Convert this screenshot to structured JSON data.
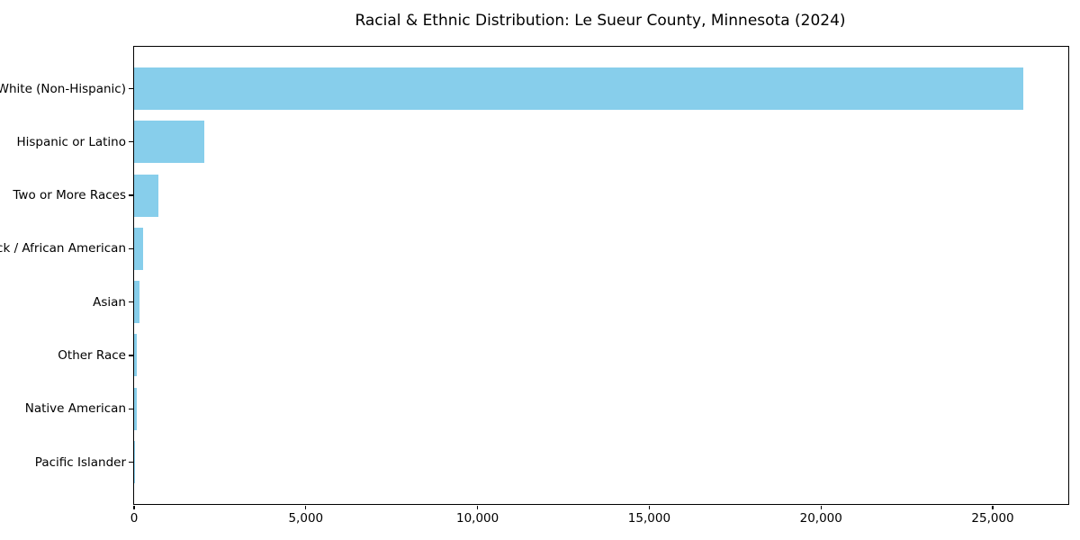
{
  "title": "Racial & Ethnic Distribution: Le Sueur County, Minnesota (2024)",
  "colors": {
    "bar": "#87CEEB",
    "axis": "#000000",
    "background": "#ffffff",
    "text": "#000000"
  },
  "chart_data": {
    "type": "bar",
    "orientation": "horizontal",
    "title": "Racial & Ethnic Distribution: Le Sueur County, Minnesota (2024)",
    "categories": [
      "White (Non-Hispanic)",
      "Hispanic or Latino",
      "Two or More Races",
      "Black / African American",
      "Asian",
      "Other Race",
      "Native American",
      "Pacific Islander"
    ],
    "values": [
      25900,
      2050,
      710,
      250,
      160,
      80,
      75,
      10
    ],
    "xlabel": "",
    "ylabel": "",
    "xlim": [
      0,
      27200
    ],
    "xticks": [
      0,
      5000,
      10000,
      15000,
      20000,
      25000
    ],
    "xtick_labels": [
      "0",
      "5,000",
      "10,000",
      "15,000",
      "20,000",
      "25,000"
    ],
    "bar_color": "#87CEEB",
    "grid": false,
    "legend": null
  }
}
